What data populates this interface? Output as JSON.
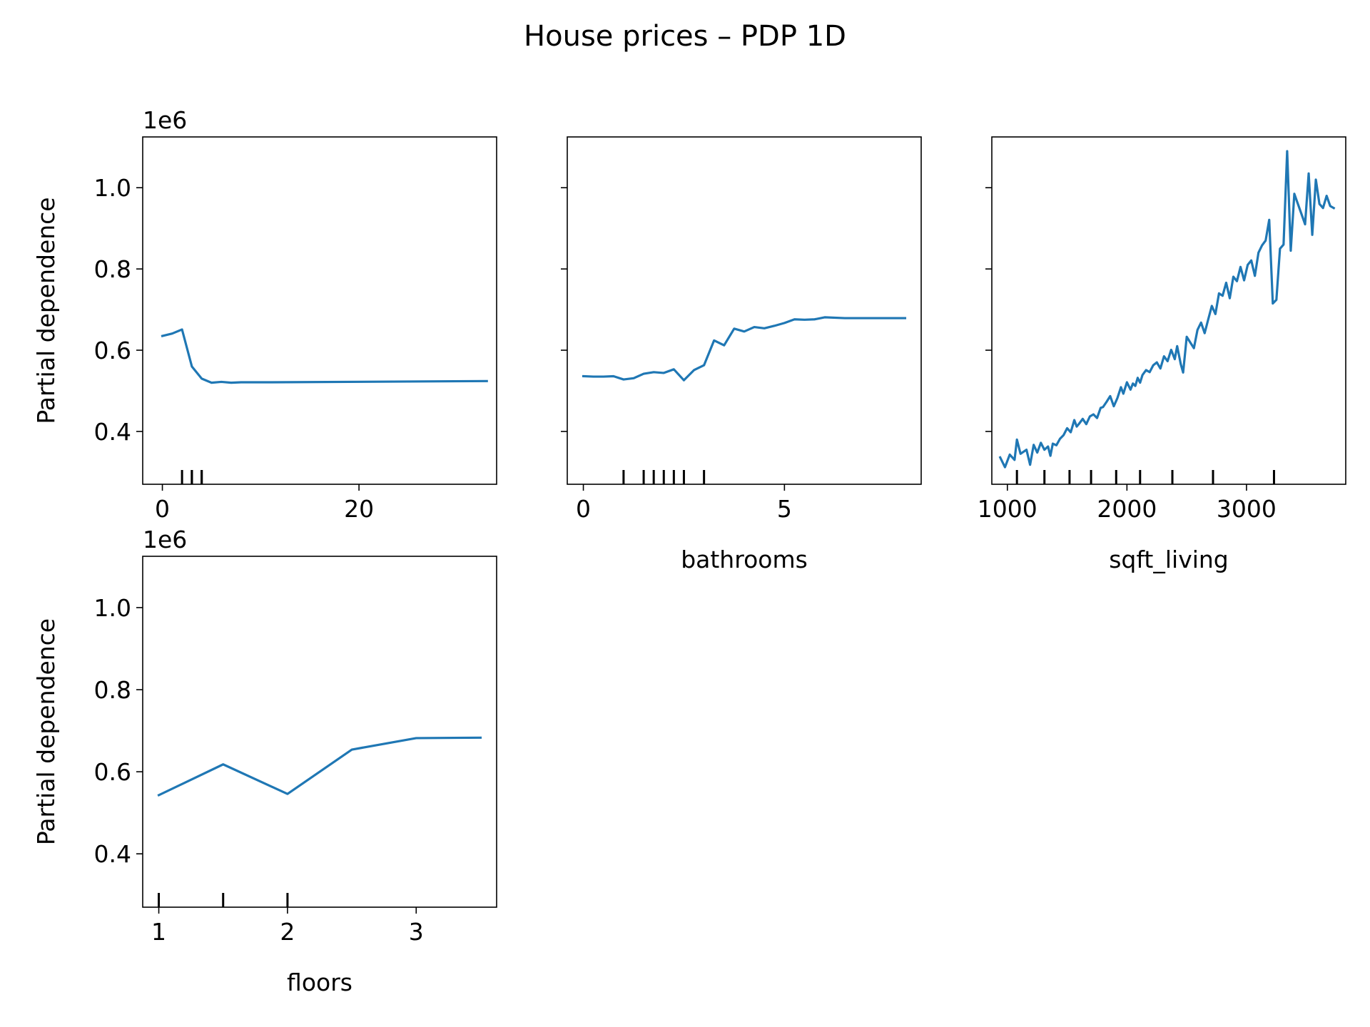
{
  "figure": {
    "title": "House prices – PDP 1D"
  },
  "colors": {
    "line": "#1f77b4",
    "axes": "#000000",
    "background": "#ffffff"
  },
  "chart_data": [
    {
      "type": "line",
      "xlabel": "",
      "ylabel": "Partial dependence",
      "y_offset_label": "1e6",
      "xlim": [
        -2,
        34
      ],
      "ylim": [
        270000,
        1125000
      ],
      "xticks": [
        0,
        20
      ],
      "yticks": [
        0.4,
        0.6,
        0.8,
        1.0
      ],
      "show_ytick_labels": true,
      "deciles": [
        2,
        3,
        3,
        4,
        4
      ],
      "x": [
        0,
        1,
        2,
        3,
        4,
        5,
        6,
        7,
        8,
        9,
        10,
        11,
        33
      ],
      "y": [
        635000,
        641000,
        651000,
        560000,
        530000,
        520000,
        522000,
        520000,
        521000,
        521000,
        521000,
        521000,
        524000
      ]
    },
    {
      "type": "line",
      "xlabel": "bathrooms",
      "ylabel": "",
      "xlim": [
        -0.4,
        8.4
      ],
      "ylim": [
        270000,
        1125000
      ],
      "xticks": [
        0,
        5
      ],
      "yticks": [
        0.4,
        0.6,
        0.8,
        1.0
      ],
      "show_ytick_labels": false,
      "deciles": [
        1,
        1.5,
        1.75,
        2,
        2.25,
        2.5,
        3
      ],
      "x": [
        0,
        0.25,
        0.5,
        0.75,
        1,
        1.25,
        1.5,
        1.75,
        2,
        2.25,
        2.5,
        2.75,
        3,
        3.25,
        3.5,
        3.75,
        4,
        4.25,
        4.5,
        4.75,
        5,
        5.25,
        5.5,
        5.75,
        6,
        6.5,
        7,
        8
      ],
      "y": [
        536000,
        535000,
        535000,
        536000,
        528000,
        531000,
        542000,
        546000,
        544000,
        553000,
        526000,
        551000,
        563000,
        624000,
        612000,
        653000,
        646000,
        657000,
        654000,
        660000,
        667000,
        676000,
        675000,
        676000,
        681000,
        679000,
        679000,
        679000
      ]
    },
    {
      "type": "line",
      "xlabel": "sqft_living",
      "ylabel": "",
      "xlim": [
        870,
        3830
      ],
      "ylim": [
        270000,
        1125000
      ],
      "xticks": [
        1000,
        2000,
        3000
      ],
      "yticks": [
        0.4,
        0.6,
        0.8,
        1.0
      ],
      "show_ytick_labels": false,
      "deciles": [
        1080,
        1310,
        1520,
        1700,
        1910,
        2110,
        2380,
        2720,
        3230
      ],
      "x": [
        940,
        980,
        1020,
        1060,
        1080,
        1110,
        1160,
        1190,
        1220,
        1250,
        1280,
        1310,
        1340,
        1360,
        1380,
        1410,
        1440,
        1470,
        1500,
        1530,
        1560,
        1580,
        1600,
        1630,
        1660,
        1690,
        1720,
        1750,
        1780,
        1800,
        1830,
        1860,
        1890,
        1920,
        1950,
        1970,
        2000,
        2030,
        2050,
        2070,
        2090,
        2110,
        2130,
        2160,
        2190,
        2220,
        2250,
        2280,
        2310,
        2340,
        2370,
        2400,
        2420,
        2450,
        2470,
        2500,
        2530,
        2560,
        2590,
        2620,
        2650,
        2680,
        2710,
        2740,
        2770,
        2800,
        2830,
        2860,
        2890,
        2920,
        2950,
        2980,
        3010,
        3040,
        3070,
        3100,
        3130,
        3160,
        3190,
        3220,
        3250,
        3280,
        3310,
        3340,
        3370,
        3400,
        3430,
        3460,
        3490,
        3520,
        3550,
        3580,
        3610,
        3640,
        3670,
        3700,
        3730
      ],
      "y": [
        336000,
        312000,
        343000,
        330000,
        380000,
        345000,
        355000,
        318000,
        367000,
        348000,
        372000,
        355000,
        363000,
        340000,
        370000,
        366000,
        382000,
        391000,
        408000,
        398000,
        428000,
        412000,
        419000,
        431000,
        418000,
        437000,
        442000,
        433000,
        458000,
        460000,
        473000,
        487000,
        462000,
        482000,
        509000,
        493000,
        521000,
        503000,
        518000,
        512000,
        532000,
        520000,
        539000,
        551000,
        546000,
        563000,
        570000,
        555000,
        585000,
        573000,
        601000,
        578000,
        610000,
        566000,
        545000,
        633000,
        619000,
        605000,
        650000,
        668000,
        642000,
        676000,
        709000,
        689000,
        740000,
        734000,
        766000,
        728000,
        781000,
        770000,
        805000,
        772000,
        810000,
        821000,
        783000,
        840000,
        858000,
        870000,
        921000,
        715000,
        724000,
        850000,
        860000,
        1090000,
        845000,
        985000,
        960000,
        935000,
        910000,
        1035000,
        884000,
        1020000,
        960000,
        950000,
        980000,
        955000,
        950000
      ]
    },
    {
      "type": "line",
      "xlabel": "floors",
      "ylabel": "Partial dependence",
      "y_offset_label": "1e6",
      "xlim": [
        0.875,
        3.625
      ],
      "ylim": [
        270000,
        1125000
      ],
      "xticks": [
        1,
        2,
        3
      ],
      "yticks": [
        0.4,
        0.6,
        0.8,
        1.0
      ],
      "show_ytick_labels": true,
      "deciles": [
        1,
        1.5,
        2
      ],
      "x": [
        1,
        1.5,
        2,
        2.5,
        3,
        3.5
      ],
      "y": [
        543000,
        618000,
        546000,
        654000,
        682000,
        683000
      ]
    }
  ]
}
